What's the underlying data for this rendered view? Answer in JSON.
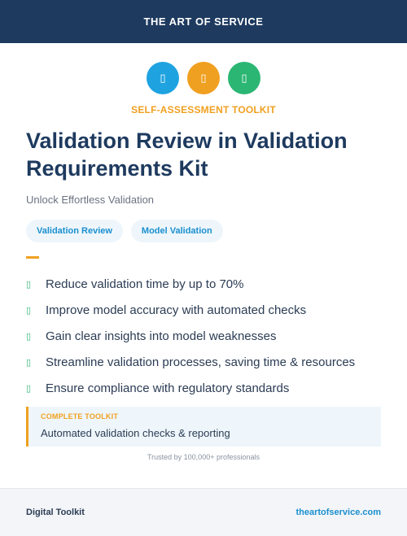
{
  "header": {
    "title": "THE ART OF SERVICE"
  },
  "icons": [
    {
      "name": "placeholder-icon",
      "glyph": "▯",
      "color": "#1ea3e0"
    },
    {
      "name": "placeholder-icon",
      "glyph": "▯",
      "color": "#f0a020"
    },
    {
      "name": "placeholder-icon",
      "glyph": "▯",
      "color": "#2bb673"
    }
  ],
  "kicker": "SELF-ASSESSMENT TOOLKIT",
  "title": "Validation Review in Validation Requirements Kit",
  "subtitle": "Unlock Effortless Validation",
  "tags": [
    "Validation Review",
    "Model Validation"
  ],
  "features": [
    "Reduce validation time by up to 70%",
    "Improve model accuracy with automated checks",
    "Gain clear insights into model weaknesses",
    "Streamline validation processes, saving time & resources",
    "Ensure compliance with regulatory standards"
  ],
  "check_glyph": "▯",
  "callout": {
    "label": "COMPLETE TOOLKIT",
    "text": "Automated validation checks & reporting"
  },
  "trusted": "Trusted by 100,000+ professionals",
  "footer": {
    "left": "Digital Toolkit",
    "right": "theartofservice.com"
  },
  "colors": {
    "navy": "#1e3a5f",
    "orange": "#f0a020",
    "blue": "#1a8fcf",
    "green": "#2bb673",
    "light_blue_bg": "#eef6fb"
  }
}
